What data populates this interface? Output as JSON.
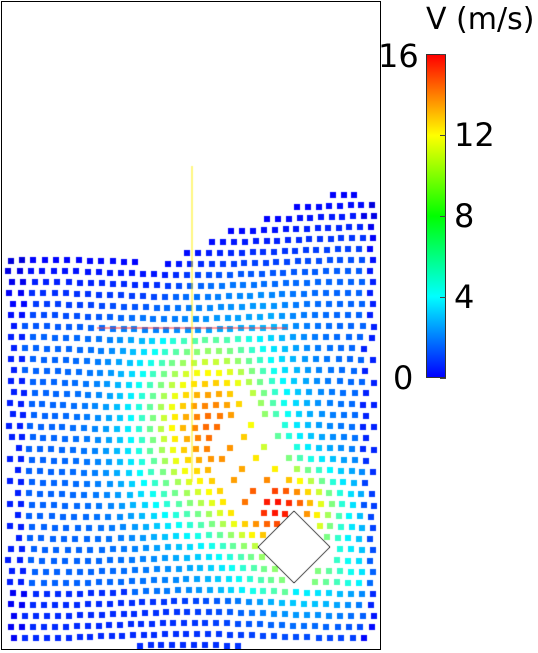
{
  "colorbar": {
    "title": "V (m/s)",
    "min": 0,
    "max": 16,
    "ticks": [
      {
        "value": 16,
        "label": "16"
      },
      {
        "value": 12,
        "label": "12"
      },
      {
        "value": 8,
        "label": "8"
      },
      {
        "value": 4,
        "label": "4"
      },
      {
        "value": 0,
        "label": "0"
      }
    ],
    "colors": [
      "#0000ff",
      "#0080ff",
      "#00ffff",
      "#00ff80",
      "#00ff00",
      "#80ff00",
      "#ffff00",
      "#ff8000",
      "#ff0000"
    ]
  },
  "scene": {
    "particle_color_scale": "jet",
    "obstacle": "diamond",
    "obstacle_fill": "#ffffff",
    "marker_lines": [
      {
        "name": "vertical-probe-line",
        "color": "#ffee00"
      },
      {
        "name": "horizontal-probe-line",
        "color": "#ff3333"
      }
    ]
  }
}
